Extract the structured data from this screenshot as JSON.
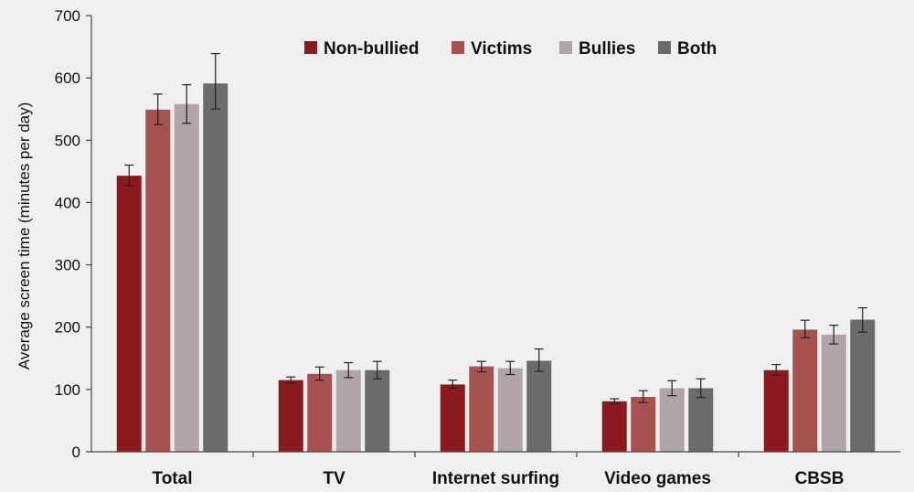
{
  "chart_data": {
    "type": "bar",
    "title": "",
    "xlabel": "",
    "ylabel": "Average screen time (minutes per day)",
    "ylim": [
      0,
      700
    ],
    "yticks": [
      0,
      100,
      200,
      300,
      400,
      500,
      600,
      700
    ],
    "grid": false,
    "legend_position": "top",
    "categories": [
      "Total",
      "TV",
      "Internet surfing",
      "Video games",
      "CBSB"
    ],
    "series": [
      {
        "name": "Non-bullied",
        "color": "#8b1a1e",
        "values": [
          443,
          115,
          108,
          81,
          131
        ],
        "error_low": [
          427,
          110,
          102,
          77,
          123
        ],
        "error_high": [
          460,
          120,
          115,
          85,
          140
        ]
      },
      {
        "name": "Victims",
        "color": "#a8524f",
        "values": [
          549,
          125,
          137,
          88,
          196
        ],
        "error_low": [
          525,
          115,
          128,
          79,
          183
        ],
        "error_high": [
          574,
          136,
          145,
          98,
          211
        ]
      },
      {
        "name": "Bullies",
        "color": "#b0a4a6",
        "values": [
          558,
          131,
          134,
          102,
          188
        ],
        "error_low": [
          527,
          119,
          124,
          90,
          173
        ],
        "error_high": [
          589,
          143,
          145,
          114,
          203
        ]
      },
      {
        "name": "Both",
        "color": "#6b6b6b",
        "values": [
          591,
          131,
          146,
          102,
          212
        ],
        "error_low": [
          550,
          117,
          129,
          87,
          192
        ],
        "error_high": [
          639,
          145,
          165,
          117,
          231
        ]
      }
    ]
  }
}
